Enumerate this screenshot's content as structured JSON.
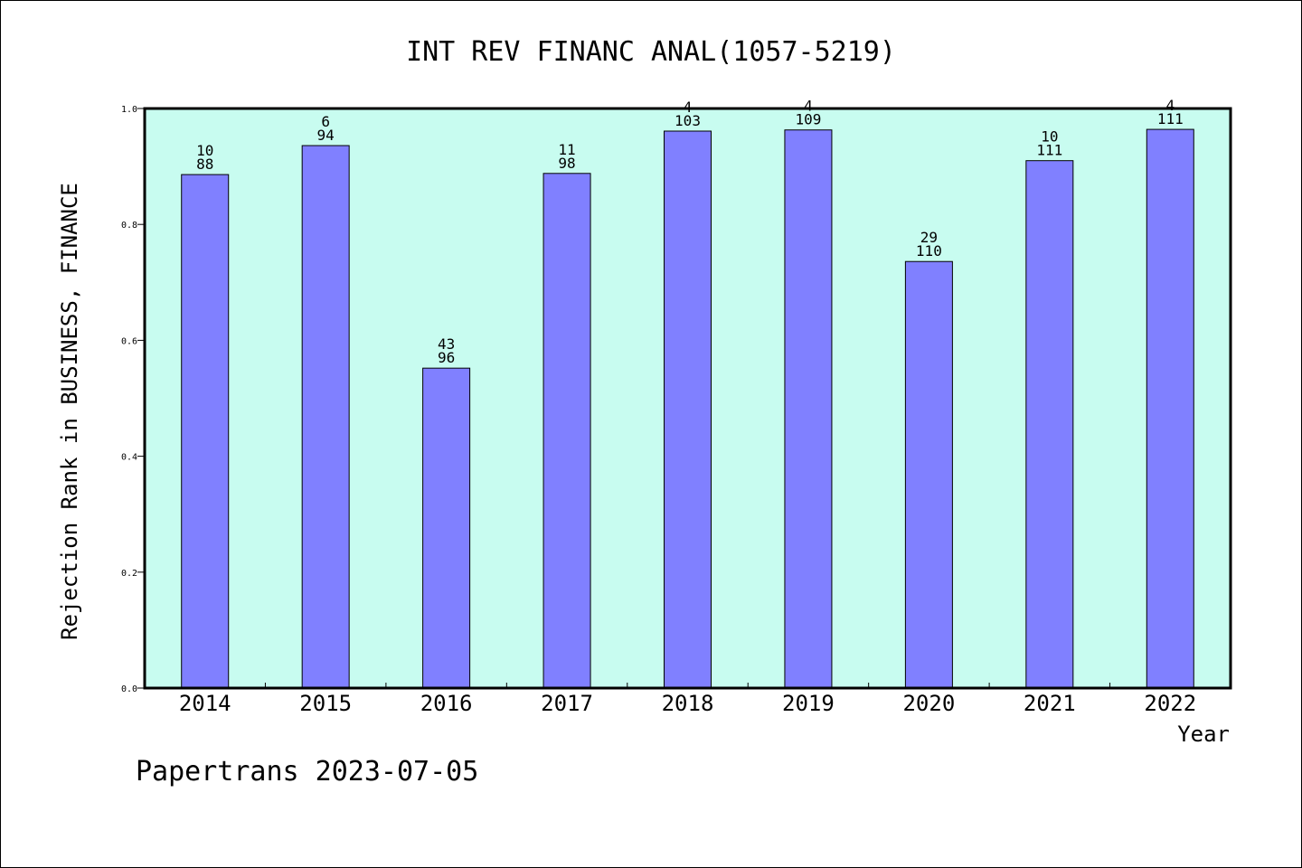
{
  "chart_data": {
    "type": "bar",
    "title": "INT REV FINANC ANAL(1057-5219)",
    "xlabel": "Year",
    "ylabel": "Rejection Rank in BUSINESS, FINANCE",
    "ylim": [
      0,
      1.0
    ],
    "yticks": [
      "0.0",
      "0.2",
      "0.4",
      "0.6",
      "0.8",
      "1.0"
    ],
    "categories": [
      "2014",
      "2015",
      "2016",
      "2017",
      "2018",
      "2019",
      "2020",
      "2021",
      "2022"
    ],
    "values": [
      0.886,
      0.936,
      0.552,
      0.888,
      0.961,
      0.963,
      0.736,
      0.91,
      0.964
    ],
    "rank_labels": [
      "10",
      "6",
      "43",
      "11",
      "4",
      "4",
      "29",
      "10",
      "4"
    ],
    "total_labels": [
      "88",
      "94",
      "96",
      "98",
      "103",
      "109",
      "110",
      "111",
      "111"
    ],
    "grid": false,
    "colors": {
      "plot_bg": "#c8fcf0",
      "bar": "#8080ff",
      "frame": "#000000"
    }
  },
  "footer": {
    "text": "Papertrans 2023-07-05"
  }
}
